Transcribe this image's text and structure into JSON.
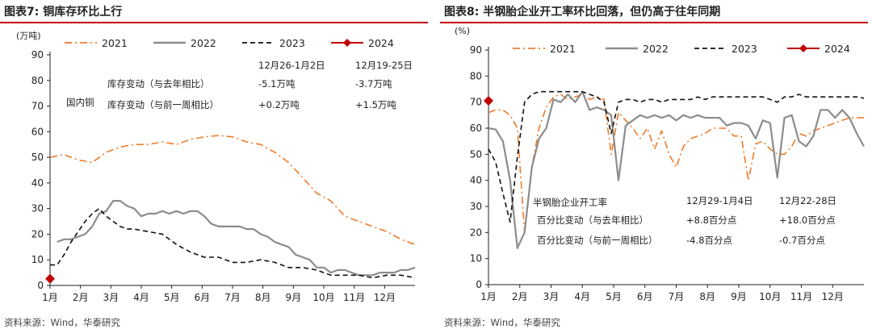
{
  "charts": [
    {
      "chart_data": {
        "type": "line",
        "title": "图表7:  铜库存环比上行",
        "source": "资料来源：Wind，华泰研究",
        "ylabel": "(万吨)",
        "ylim": [
          0,
          90
        ],
        "yticks": [
          "0",
          "10",
          "20",
          "30",
          "40",
          "50",
          "60",
          "70",
          "80",
          "90"
        ],
        "xlim": [
          0,
          52
        ],
        "xticks": [
          "1月",
          "2月",
          "3月",
          "4月",
          "5月",
          "6月",
          "7月",
          "8月",
          "9月",
          "10月",
          "11月",
          "12月"
        ],
        "legend": [
          "2021",
          "2022",
          "2023",
          "2024"
        ],
        "series": [
          {
            "name": "2021",
            "color": "#ee7b2a",
            "dash": "dashdot",
            "x": [
              0,
              2,
              4,
              6,
              8,
              10,
              12,
              14,
              16,
              18,
              20,
              22,
              24,
              26,
              28,
              30,
              32,
              34,
              36,
              38,
              40,
              42,
              44,
              46,
              48,
              50,
              52
            ],
            "y": [
              50,
              51,
              49,
              48,
              52,
              54,
              55,
              55,
              56,
              55,
              57,
              58,
              58.5,
              58,
              56,
              55,
              52,
              48,
              42,
              36,
              33,
              27,
              25,
              23,
              21,
              18,
              16
            ]
          },
          {
            "name": "2022",
            "color": "#8c8c8c",
            "dash": "solid",
            "x": [
              1,
              2,
              3,
              4,
              5,
              6,
              7,
              8,
              9,
              10,
              11,
              12,
              13,
              14,
              15,
              16,
              17,
              18,
              19,
              20,
              21,
              22,
              23,
              24,
              25,
              26,
              27,
              28,
              29,
              30,
              31,
              32,
              33,
              34,
              35,
              36,
              37,
              38,
              39,
              40,
              41,
              42,
              43,
              44,
              45,
              46,
              47,
              48,
              49,
              50,
              51,
              52
            ],
            "y": [
              17,
              18,
              18,
              19,
              20,
              23,
              28,
              29,
              33,
              33,
              31,
              30,
              27,
              28,
              28,
              29,
              28,
              29,
              28,
              29,
              29,
              27,
              24,
              23,
              23,
              23,
              23,
              22,
              22,
              20,
              19,
              17,
              16,
              15,
              12,
              11,
              10,
              7,
              7,
              5,
              6,
              6,
              5,
              4,
              4,
              4,
              5,
              5,
              5,
              6,
              6,
              7
            ]
          },
          {
            "name": "2023",
            "color": "#111111",
            "dash": "dash",
            "x": [
              0,
              1,
              2,
              3,
              4,
              5,
              6,
              7,
              8,
              9,
              10,
              11,
              12,
              14,
              16,
              18,
              20,
              22,
              24,
              26,
              28,
              30,
              32,
              34,
              36,
              38,
              40,
              42,
              44,
              46,
              48,
              50,
              52
            ],
            "y": [
              8,
              8,
              12,
              17,
              21,
              25,
              28,
              30,
              27,
              25,
              23,
              22,
              22,
              21,
              20,
              16,
              13,
              11,
              11,
              9,
              9,
              10,
              9,
              7,
              7,
              6,
              4,
              4,
              4,
              3,
              4,
              4,
              3
            ]
          },
          {
            "name": "2024",
            "color": "#c00000",
            "marker": "diamond",
            "x": [
              0
            ],
            "y": [
              2.6
            ]
          }
        ],
        "annotations": {
          "region": "国内铜",
          "row_labels": [
            "库存变动（与去年相比）",
            "库存变动（与前一周相比）"
          ],
          "col_headers": [
            "12月26-1月2日",
            "12月19-25日"
          ],
          "values": [
            [
              "-5.1万吨",
              "-3.7万吨"
            ],
            [
              "+0.2万吨",
              "+1.5万吨"
            ]
          ]
        }
      }
    },
    {
      "chart_data": {
        "type": "line",
        "title": "图表8:  半钢胎企业开工率环比回落，但仍高于往年同期",
        "source": "资料来源：Wind，华泰研究",
        "ylabel": "(%)",
        "ylim": [
          0,
          90
        ],
        "yticks": [
          "0",
          "10",
          "20",
          "30",
          "40",
          "50",
          "60",
          "70",
          "80",
          "90"
        ],
        "xlim": [
          0,
          52
        ],
        "xticks": [
          "1月",
          "2月",
          "3月",
          "4月",
          "5月",
          "6月",
          "7月",
          "8月",
          "9月",
          "10月",
          "11月",
          "12月"
        ],
        "legend": [
          "2021",
          "2022",
          "2023",
          "2024"
        ],
        "series": [
          {
            "name": "2021",
            "color": "#ee7b2a",
            "dash": "dashdot",
            "x": [
              0,
              1,
              2,
              3,
              4,
              5,
              6,
              7,
              8,
              9,
              10,
              11,
              12,
              13,
              14,
              15,
              16,
              17,
              18,
              19,
              20,
              21,
              22,
              23,
              24,
              25,
              26,
              27,
              28,
              29,
              30,
              31,
              32,
              33,
              34,
              35,
              36,
              37,
              38,
              39,
              40,
              41,
              42,
              43,
              44,
              45,
              46,
              47,
              48,
              49,
              50,
              51,
              52
            ],
            "y": [
              66,
              67,
              67,
              65,
              60,
              20,
              45,
              60,
              68,
              72,
              73,
              71,
              72,
              73,
              71,
              72,
              71,
              50,
              66,
              63,
              60,
              56,
              60,
              52,
              59,
              50,
              45,
              53,
              56,
              57,
              58,
              60,
              60,
              60,
              57,
              57,
              40,
              54,
              55,
              52,
              50,
              50,
              53,
              58,
              57,
              59,
              60,
              61,
              62,
              63,
              64,
              64,
              64
            ]
          },
          {
            "name": "2022",
            "color": "#8c8c8c",
            "dash": "solid",
            "x": [
              0,
              1,
              2,
              3,
              4,
              5,
              6,
              7,
              8,
              9,
              10,
              11,
              12,
              13,
              14,
              15,
              16,
              17,
              18,
              19,
              20,
              21,
              22,
              23,
              24,
              25,
              26,
              27,
              28,
              29,
              30,
              31,
              32,
              33,
              34,
              35,
              36,
              37,
              38,
              39,
              40,
              41,
              42,
              43,
              44,
              45,
              46,
              47,
              48,
              49,
              50,
              51,
              52
            ],
            "y": [
              60,
              59.5,
              55,
              40,
              14,
              20,
              45,
              56,
              60,
              71,
              70,
              73,
              70,
              74,
              67,
              68,
              67,
              65,
              40,
              61,
              63,
              65,
              64,
              65,
              64,
              65,
              63,
              65,
              64,
              65,
              64,
              64,
              64,
              61,
              62,
              62,
              61,
              56,
              63,
              62,
              41,
              64,
              65,
              55,
              53,
              57,
              67,
              67,
              64,
              67,
              64,
              58,
              53
            ]
          },
          {
            "name": "2023",
            "color": "#111111",
            "dash": "dash",
            "x": [
              0,
              1,
              2,
              3,
              4,
              5,
              6,
              7,
              8,
              9,
              10,
              11,
              12,
              13,
              14,
              15,
              16,
              17,
              18,
              19,
              20,
              21,
              22,
              23,
              24,
              25,
              26,
              27,
              28,
              29,
              30,
              31,
              32,
              33,
              34,
              35,
              36,
              37,
              38,
              39,
              40,
              41,
              42,
              43,
              44,
              45,
              46,
              47,
              48,
              49,
              50,
              51,
              52
            ],
            "y": [
              52,
              47,
              35,
              24,
              49,
              70,
              73,
              74,
              74,
              74,
              74,
              74,
              74,
              74,
              73,
              72,
              70,
              58,
              70,
              71,
              71,
              70,
              71,
              71,
              70,
              71,
              71,
              71,
              71,
              72,
              71,
              72,
              72,
              72,
              72,
              72,
              72,
              72,
              72,
              71,
              70,
              72,
              72,
              73,
              72,
              72,
              72,
              72,
              72,
              72,
              72,
              72,
              71.5
            ]
          },
          {
            "name": "2024",
            "color": "#c00000",
            "marker": "diamond",
            "x": [
              0
            ],
            "y": [
              70.5
            ]
          }
        ],
        "annotations": {
          "region": "半钢胎企业开工率",
          "row_labels": [
            "百分比变动（与去年相比）",
            "百分比变动（与前一周相比）"
          ],
          "col_headers": [
            "12月29-1月4日",
            "12月22-28日"
          ],
          "values": [
            [
              "+8.8百分点",
              "+18.0百分点"
            ],
            [
              "-4.8百分点",
              "-0.7百分点"
            ]
          ]
        }
      }
    }
  ]
}
